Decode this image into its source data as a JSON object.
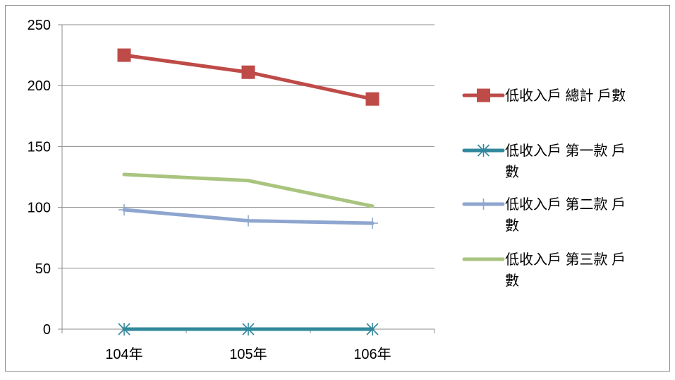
{
  "chart_data": {
    "type": "line",
    "categories": [
      "104年",
      "105年",
      "106年"
    ],
    "ylim": [
      0,
      250
    ],
    "yticks": [
      0,
      50,
      100,
      150,
      200,
      250
    ],
    "grid": "horizontal",
    "legend_position": "right",
    "series": [
      {
        "name": "低收入戶 總計 戶數",
        "legend_lines": [
          "低收入戶 總計 戶數"
        ],
        "values": [
          225,
          211,
          189
        ],
        "color": "#BE4B48",
        "marker": "square"
      },
      {
        "name": "低收入戶 第一款 戶數",
        "legend_lines": [
          "低收入戶 第一款 戶",
          "數"
        ],
        "values": [
          0,
          0,
          0
        ],
        "color": "#31879B",
        "marker": "star"
      },
      {
        "name": "低收入戶 第二款 戶數",
        "legend_lines": [
          "低收入戶 第二款 戶",
          "數"
        ],
        "values": [
          98,
          89,
          87
        ],
        "color": "#8EA6CF",
        "marker": "plus"
      },
      {
        "name": "低收入戶 第三款 戶數",
        "legend_lines": [
          "低收入戶 第三款 戶",
          "數"
        ],
        "values": [
          127,
          122,
          101
        ],
        "color": "#A9C47F",
        "marker": "none"
      }
    ]
  }
}
